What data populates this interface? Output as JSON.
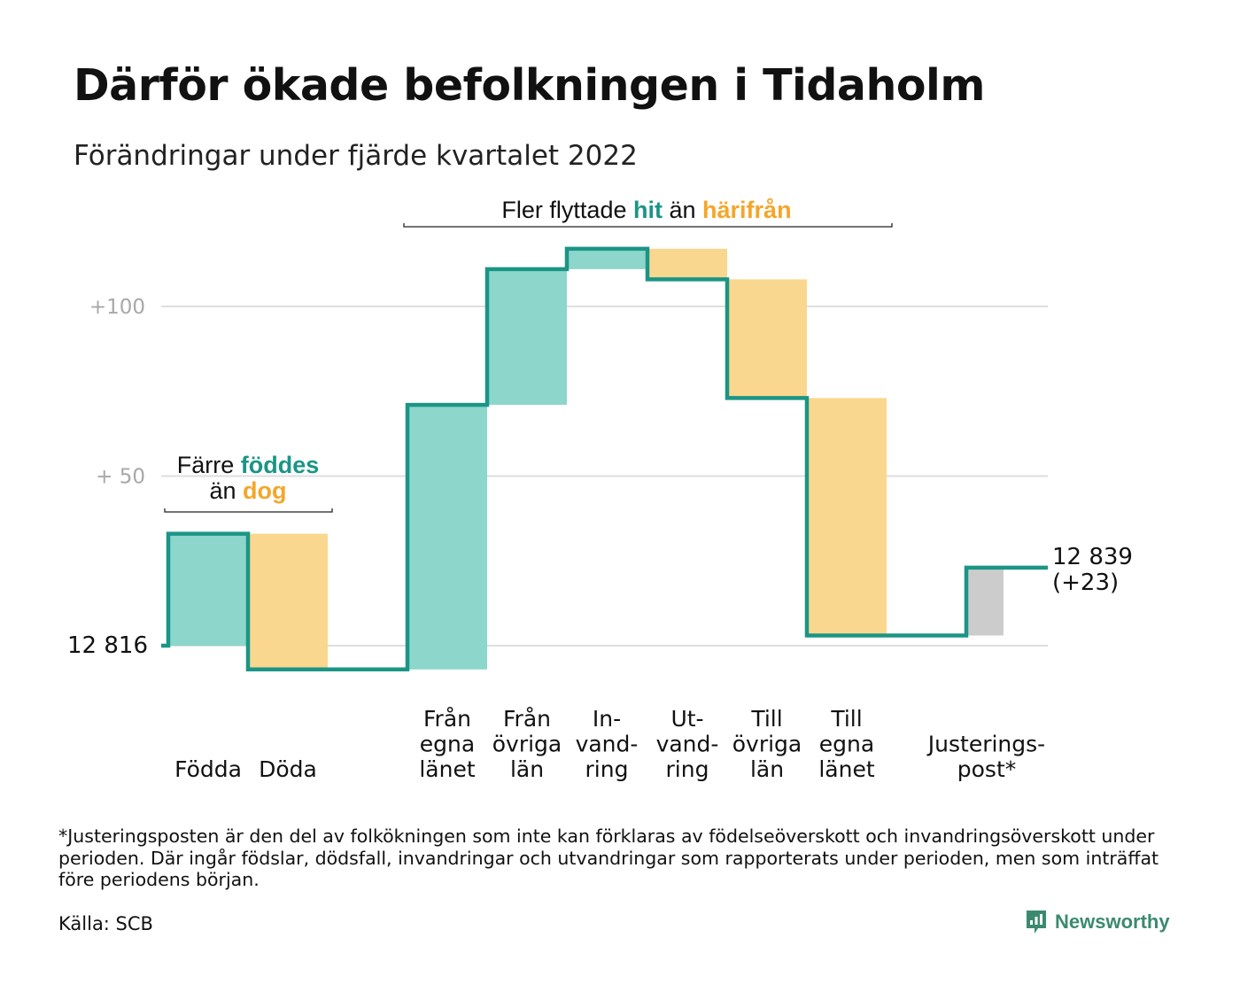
{
  "title": "Därför ökade befolkningen i Tidaholm",
  "subtitle": "Förändringar under fjärde kvartalet 2022",
  "chart_data": {
    "type": "waterfall",
    "start_value": 12816,
    "start_label": "12 816",
    "end_label": "12 839",
    "end_change_label": "(+23)",
    "y_ticks": [
      {
        "value": 50,
        "label": "+ 50"
      },
      {
        "value": 100,
        "label": "+100"
      }
    ],
    "grid": true,
    "steps": [
      {
        "label_lines": [
          "Födda"
        ],
        "change": 33,
        "kind": "in"
      },
      {
        "label_lines": [
          "Döda"
        ],
        "change": -40,
        "kind": "out"
      },
      {
        "label_lines": [
          "Från",
          "egna",
          "länet"
        ],
        "change": 78,
        "kind": "in"
      },
      {
        "label_lines": [
          "Från",
          "övriga",
          "län"
        ],
        "change": 40,
        "kind": "in"
      },
      {
        "label_lines": [
          "In-",
          "vand-",
          "ring"
        ],
        "change": 6,
        "kind": "in"
      },
      {
        "label_lines": [
          "Ut-",
          "vand-",
          "ring"
        ],
        "change": -9,
        "kind": "out"
      },
      {
        "label_lines": [
          "Till",
          "övriga",
          "län"
        ],
        "change": -35,
        "kind": "out"
      },
      {
        "label_lines": [
          "Till",
          "egna",
          "länet"
        ],
        "change": -70,
        "kind": "out"
      },
      {
        "label_lines": [
          "Justerings-",
          "post*"
        ],
        "change": 20,
        "kind": "adjust"
      }
    ],
    "annotations": [
      {
        "parts": [
          {
            "text": "Färre ",
            "tone": "plain"
          },
          {
            "text": "föddes",
            "tone": "in"
          }
        ],
        "parts2": [
          {
            "text": "än ",
            "tone": "plain"
          },
          {
            "text": "dog",
            "tone": "out"
          }
        ]
      },
      {
        "parts": [
          {
            "text": "Fler flyttade ",
            "tone": "plain"
          },
          {
            "text": "hit",
            "tone": "in"
          },
          {
            "text": " än ",
            "tone": "plain"
          },
          {
            "text": "härifrån",
            "tone": "out"
          }
        ]
      }
    ],
    "colors": {
      "in_fill": "#8dd6cc",
      "out_fill": "#fad78e",
      "adjust_fill": "#cccccc",
      "line": "#1b9585",
      "in_text": "#1b9585",
      "out_text": "#f4a62a",
      "grid": "#dedede",
      "tick_text": "#a8a8a8"
    }
  },
  "footnote": "*Justeringsposten är den del av folkökningen som inte kan förklaras av födelseöverskott och invandringsöverskott under perioden. Där ingår födslar, dödsfall, invandringar och utvandringar som rapporterats under perioden, men som inträffat före periodens början.",
  "source": "Källa: SCB",
  "brand": {
    "name": "Newsworthy",
    "icon": "newsworthy-logo-icon",
    "color": "#3c8a6e"
  }
}
